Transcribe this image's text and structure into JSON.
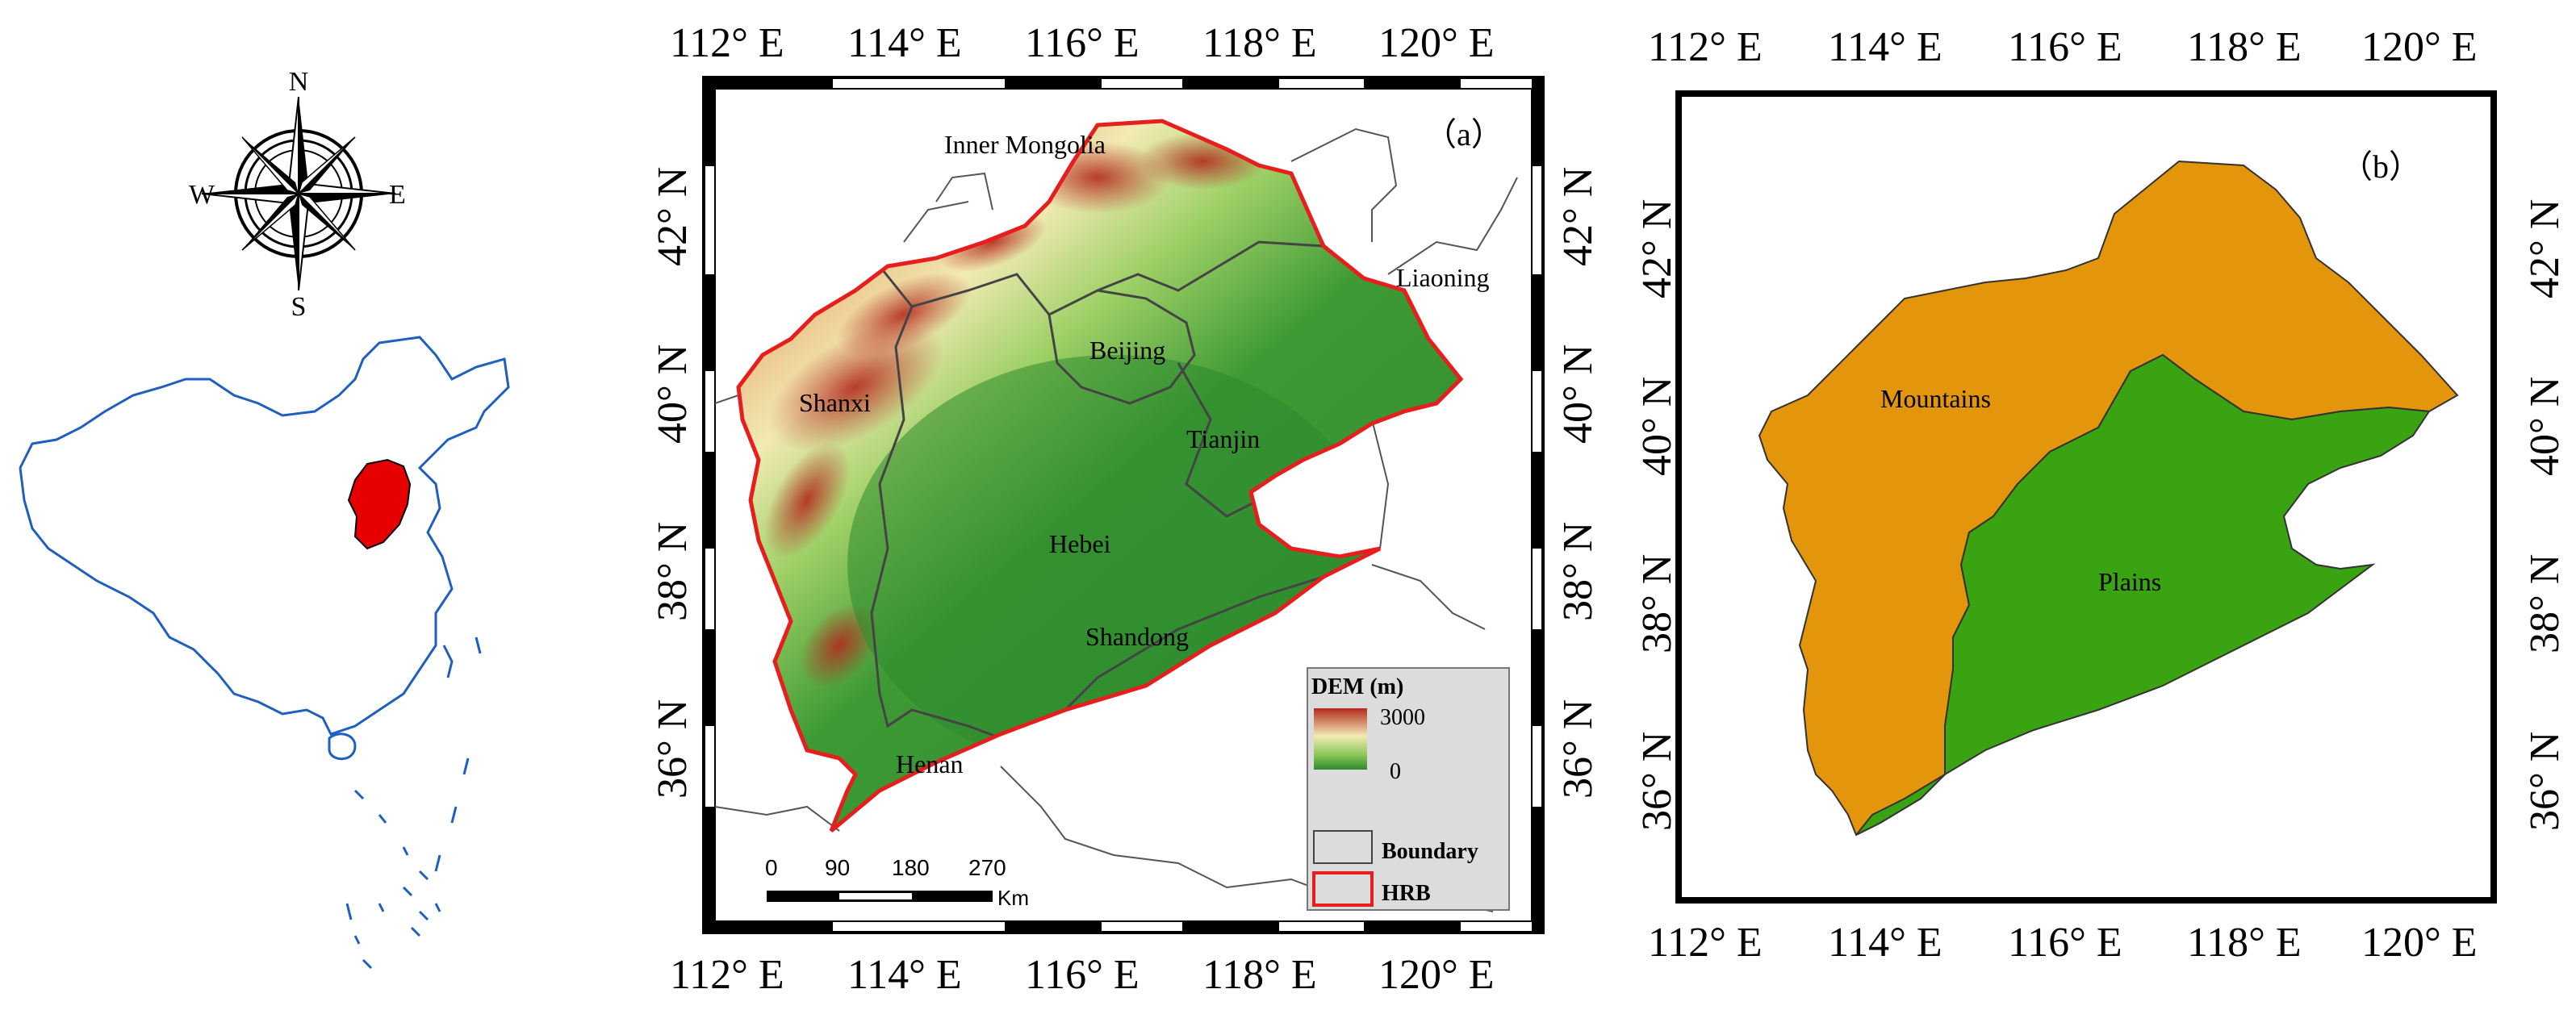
{
  "compass": {
    "n": "N",
    "s": "S",
    "e": "E",
    "w": "W"
  },
  "map_a": {
    "panel_label": "（a）",
    "lon_ticks": [
      "112° E",
      "114° E",
      "116° E",
      "118° E",
      "120° E"
    ],
    "lat_ticks": [
      "42° N",
      "40° N",
      "38° N",
      "36° N"
    ],
    "places": {
      "inner_mongolia": "Inner Mongolia",
      "liaoning": "Liaoning",
      "beijing": "Beijing",
      "shanxi": "Shanxi",
      "tianjin": "Tianjin",
      "hebei": "Hebei",
      "shandong": "Shandong",
      "henan": "Henan"
    },
    "legend": {
      "title": "DEM (m)",
      "high": "3000",
      "low": "0",
      "boundary": "Boundary",
      "hrb": "HRB"
    },
    "scale": {
      "ticks": [
        "0",
        "90",
        "180",
        "270"
      ],
      "unit": "Km"
    }
  },
  "map_b": {
    "panel_label": "（b）",
    "lon_ticks": [
      "112° E",
      "114° E",
      "116° E",
      "118° E",
      "120° E"
    ],
    "lat_ticks": [
      "42° N",
      "40° N",
      "38° N",
      "36° N"
    ],
    "regions": {
      "mountains": "Mountains",
      "plains": "Plains"
    }
  },
  "colors": {
    "china_outline": "#1f5fbf",
    "hrb_fill": "#e60000",
    "hrb_outline": "#e61e1e",
    "mountains": "#e3950b",
    "plains": "#3aa312",
    "dem_high": "#b22a1e",
    "dem_mid": "#f2eab4",
    "dem_low": "#2e8b2e"
  }
}
